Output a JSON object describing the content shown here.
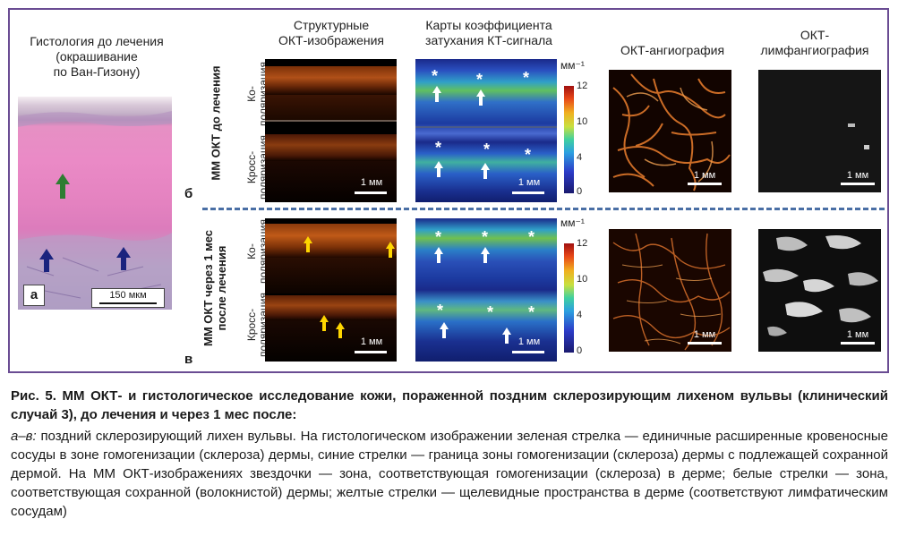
{
  "histology": {
    "title_line1": "Гистология до лечения",
    "title_line2": "(окрашивание",
    "title_line3": "по Ван-Гизону)",
    "scalebar": "150 мкм",
    "letter": "а"
  },
  "columns": {
    "structural_line1": "Структурные",
    "structural_line2": "ОКТ-изображения",
    "attenuation_line1": "Карты коэффициента",
    "attenuation_line2": "затухания КТ-сигнала",
    "angiography": "ОКТ-ангиография",
    "lymph_line1": "ОКТ-",
    "lymph_line2": "лимфангиография"
  },
  "rows": {
    "before": "ММ ОКТ до лечения",
    "after_line1": "ММ ОКТ через 1 мес",
    "after_line2": "после лечения",
    "co_line1": "Ко-",
    "co_line2": "поляризация",
    "cross_line1": "Кросс-",
    "cross_line2": "поляризация",
    "letter_b": "б",
    "letter_v": "в"
  },
  "scalebar": "1 мм",
  "colorbar": {
    "unit": "мм⁻¹",
    "ticks": [
      "12",
      "10",
      "4",
      "0"
    ],
    "colors": [
      "#1a1a6e",
      "#2c3cc8",
      "#2ca0e0",
      "#40d0a0",
      "#c8e040",
      "#f0b020",
      "#e84818",
      "#a01010"
    ]
  },
  "caption": {
    "title": "Рис. 5. ММ ОКТ- и гистологическое исследование кожи, пораженной поздним склерозирующим лихеном вульвы (клинический случай 3), до лечения и через 1 мес после:",
    "body_italic": "а–в:",
    "body": " поздний склерозирующий лихен вульвы. На гистологическом изображении зеленая стрелка — единичные расширенные кровеносные сосуды в зоне гомогенизации (склероза) дермы, синие стрелки — граница зоны гомогенизации (склероза) дермы с подлежащей сохранной дермой. На ММ ОКТ-изображениях звездочки — зона, соответствующая гомогенизации (склероза) в дерме; белые стрелки — зона, соответствующая сохранной (волокнистой) дермы; желтые стрелки — щелевидные пространства в дерме (соответствуют лимфатическим сосудам)"
  }
}
